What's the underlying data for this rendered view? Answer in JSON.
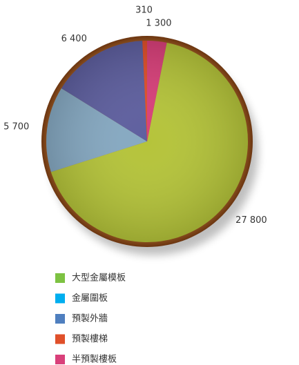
{
  "chart_data": {
    "type": "pie",
    "categories": [
      "大型金屬模板",
      "金屬圍板",
      "預製外牆",
      "預製樓梯",
      "半預製樓板"
    ],
    "values": [
      27800,
      5700,
      6400,
      310,
      1300
    ],
    "value_labels": [
      "27 800",
      "5 700",
      "6 400",
      "310",
      "1 300"
    ],
    "colors": [
      "#7dc242",
      "#00aeef",
      "#4f7fbf",
      "#e0502a",
      "#d9407a"
    ],
    "slice_colors": [
      "#b5c43a",
      "#86a9c2",
      "#5e5f9f",
      "#e0502a",
      "#d9407a"
    ],
    "legend": "bottom-left"
  }
}
